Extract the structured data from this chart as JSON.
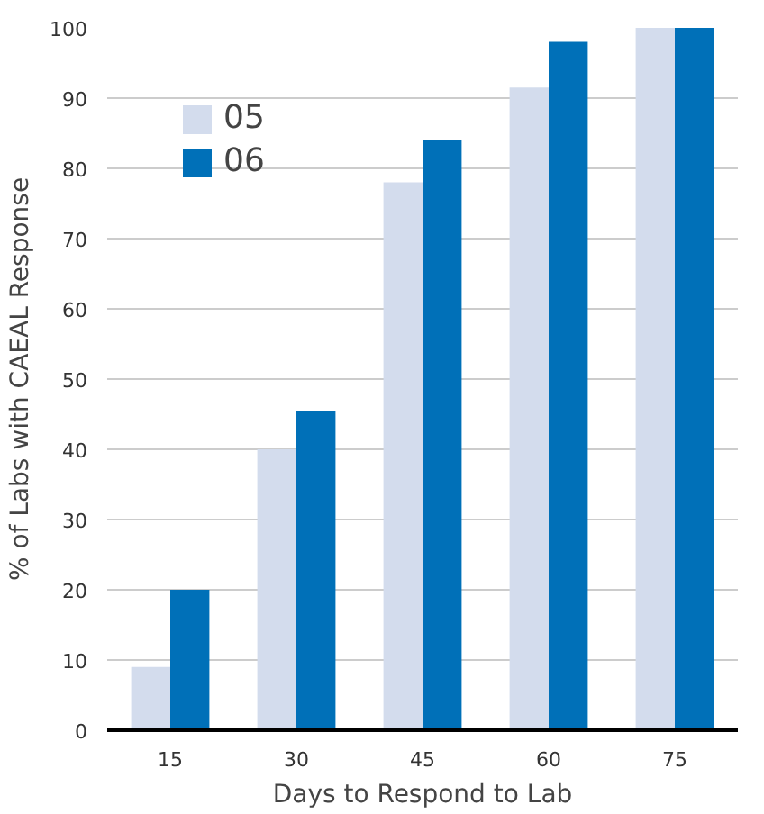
{
  "chart_data": {
    "type": "bar",
    "xlabel": "Days to Respond to Lab",
    "ylabel": "% of Labs with CAEAL Response",
    "categories": [
      "15",
      "30",
      "45",
      "60",
      "75"
    ],
    "series": [
      {
        "name": "05",
        "color": "#d3dced",
        "values": [
          9,
          40,
          78,
          91.5,
          100
        ]
      },
      {
        "name": "06",
        "color": "#0070b8",
        "values": [
          20,
          45.5,
          84,
          98,
          100
        ]
      }
    ],
    "ylim": [
      0,
      100
    ],
    "yticks": [
      0,
      10,
      20,
      30,
      40,
      50,
      60,
      70,
      80,
      90,
      100
    ],
    "grid": "y",
    "legend": "top left"
  }
}
